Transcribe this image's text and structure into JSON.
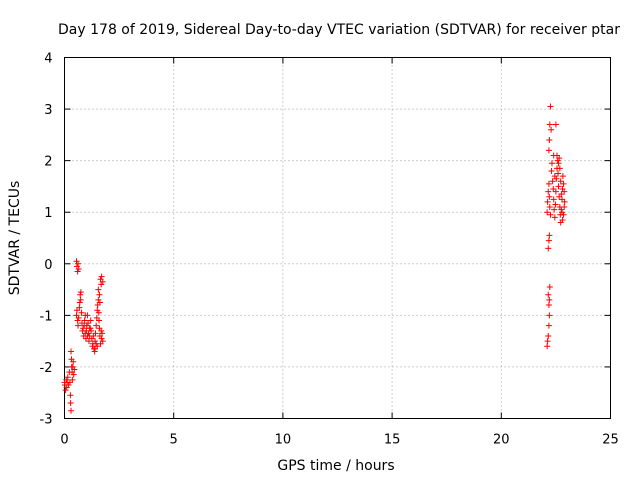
{
  "chart_data": {
    "type": "scatter",
    "title": "Day 178 of 2019, Sidereal Day-to-day VTEC variation (SDTVAR) for receiver ptar",
    "xlabel": "GPS time / hours",
    "ylabel": "SDTVAR / TECUs",
    "xlim": [
      0,
      25
    ],
    "ylim": [
      -3,
      4
    ],
    "xticks": [
      "0",
      "5",
      "10",
      "15",
      "20",
      "25"
    ],
    "xtick_values": [
      0,
      5,
      10,
      15,
      20,
      25
    ],
    "yticks": [
      "-3",
      "-2",
      "-1",
      "0",
      "1",
      "2",
      "3",
      "4"
    ],
    "ytick_values": [
      -3,
      -2,
      -1,
      0,
      1,
      2,
      3,
      4
    ],
    "grid": true,
    "marker": "+",
    "color": "#ff0000",
    "series": [
      {
        "name": "ptar",
        "points": [
          [
            0.0,
            -2.3
          ],
          [
            0.02,
            -2.35
          ],
          [
            0.05,
            -2.45
          ],
          [
            0.08,
            -2.25
          ],
          [
            0.1,
            -2.4
          ],
          [
            0.12,
            -2.3
          ],
          [
            0.15,
            -2.2
          ],
          [
            0.18,
            -2.35
          ],
          [
            0.22,
            -2.1
          ],
          [
            0.25,
            -2.3
          ],
          [
            0.27,
            -2.55
          ],
          [
            0.28,
            -2.7
          ],
          [
            0.3,
            -2.85
          ],
          [
            0.3,
            -1.7
          ],
          [
            0.32,
            -1.85
          ],
          [
            0.33,
            -2.0
          ],
          [
            0.35,
            -2.1
          ],
          [
            0.36,
            -2.25
          ],
          [
            0.38,
            -2.0
          ],
          [
            0.4,
            -1.9
          ],
          [
            0.42,
            -2.15
          ],
          [
            0.45,
            -2.05
          ],
          [
            0.55,
            0.05
          ],
          [
            0.57,
            -0.05
          ],
          [
            0.6,
            -0.15
          ],
          [
            0.62,
            0.0
          ],
          [
            0.65,
            -0.1
          ],
          [
            0.55,
            -1.0
          ],
          [
            0.57,
            -0.9
          ],
          [
            0.6,
            -1.1
          ],
          [
            0.62,
            -1.2
          ],
          [
            0.65,
            -1.05
          ],
          [
            0.68,
            -0.85
          ],
          [
            0.7,
            -0.75
          ],
          [
            0.72,
            -0.6
          ],
          [
            0.74,
            -0.7
          ],
          [
            0.75,
            -0.55
          ],
          [
            0.78,
            -0.95
          ],
          [
            0.8,
            -1.15
          ],
          [
            0.82,
            -1.3
          ],
          [
            0.85,
            -1.25
          ],
          [
            0.88,
            -1.4
          ],
          [
            0.9,
            -1.2
          ],
          [
            0.92,
            -1.1
          ],
          [
            0.95,
            -1.35
          ],
          [
            0.98,
            -1.45
          ],
          [
            1.0,
            -1.3
          ],
          [
            1.02,
            -1.2
          ],
          [
            1.05,
            -1.0
          ],
          [
            1.08,
            -1.15
          ],
          [
            1.1,
            -1.35
          ],
          [
            1.12,
            -1.5
          ],
          [
            1.15,
            -1.4
          ],
          [
            1.18,
            -1.25
          ],
          [
            1.2,
            -1.1
          ],
          [
            1.22,
            -1.3
          ],
          [
            1.25,
            -1.45
          ],
          [
            1.28,
            -1.6
          ],
          [
            1.3,
            -1.55
          ],
          [
            1.32,
            -1.4
          ],
          [
            1.35,
            -1.65
          ],
          [
            1.38,
            -1.7
          ],
          [
            1.4,
            -1.5
          ],
          [
            1.42,
            -1.35
          ],
          [
            1.45,
            -1.2
          ],
          [
            1.48,
            -1.05
          ],
          [
            1.5,
            -0.9
          ],
          [
            1.5,
            -1.6
          ],
          [
            1.52,
            -0.8
          ],
          [
            1.55,
            -0.7
          ],
          [
            1.57,
            -0.95
          ],
          [
            1.58,
            -1.1
          ],
          [
            1.6,
            -1.25
          ],
          [
            1.62,
            -1.4
          ],
          [
            1.65,
            -1.55
          ],
          [
            1.68,
            -1.3
          ],
          [
            1.7,
            -1.45
          ],
          [
            1.72,
            -1.35
          ],
          [
            1.75,
            -1.5
          ],
          [
            1.55,
            -0.5
          ],
          [
            1.6,
            -0.6
          ],
          [
            1.62,
            -0.75
          ],
          [
            1.65,
            -0.3
          ],
          [
            1.68,
            -0.4
          ],
          [
            1.7,
            -0.25
          ],
          [
            1.75,
            -0.35
          ],
          [
            1.45,
            -1.55
          ],
          [
            1.4,
            -1.65
          ],
          [
            1.15,
            -1.25
          ],
          [
            1.05,
            -1.4
          ],
          [
            0.95,
            -1.0
          ],
          [
            22.1,
            -1.6
          ],
          [
            22.12,
            -1.5
          ],
          [
            22.15,
            -1.4
          ],
          [
            22.18,
            -1.2
          ],
          [
            22.2,
            -1.0
          ],
          [
            22.18,
            -0.8
          ],
          [
            22.15,
            -0.6
          ],
          [
            22.2,
            -0.7
          ],
          [
            22.22,
            -0.45
          ],
          [
            22.15,
            0.3
          ],
          [
            22.18,
            0.45
          ],
          [
            22.2,
            0.55
          ],
          [
            22.1,
            1.0
          ],
          [
            22.12,
            1.2
          ],
          [
            22.15,
            1.4
          ],
          [
            22.18,
            1.55
          ],
          [
            22.2,
            1.3
          ],
          [
            22.22,
            1.1
          ],
          [
            22.25,
            0.95
          ],
          [
            22.18,
            2.2
          ],
          [
            22.2,
            2.4
          ],
          [
            22.22,
            2.7
          ],
          [
            22.25,
            3.05
          ],
          [
            22.28,
            2.6
          ],
          [
            22.3,
            1.8
          ],
          [
            22.32,
            1.95
          ],
          [
            22.35,
            1.6
          ],
          [
            22.38,
            1.45
          ],
          [
            22.4,
            1.25
          ],
          [
            22.42,
            1.05
          ],
          [
            22.45,
            0.9
          ],
          [
            22.48,
            1.15
          ],
          [
            22.5,
            1.4
          ],
          [
            22.5,
            2.7
          ],
          [
            22.52,
            1.65
          ],
          [
            22.55,
            1.85
          ],
          [
            22.55,
            2.1
          ],
          [
            22.58,
            2.0
          ],
          [
            22.6,
            1.75
          ],
          [
            22.62,
            1.5
          ],
          [
            22.65,
            1.3
          ],
          [
            22.68,
            1.1
          ],
          [
            22.7,
            0.95
          ],
          [
            22.72,
            0.8
          ],
          [
            22.75,
            1.05
          ],
          [
            22.78,
            1.25
          ],
          [
            22.8,
            1.45
          ],
          [
            22.82,
            1.7
          ],
          [
            22.85,
            1.55
          ],
          [
            22.88,
            1.4
          ],
          [
            22.9,
            1.2
          ],
          [
            22.62,
            1.95
          ],
          [
            22.65,
            2.05
          ],
          [
            22.68,
            1.85
          ],
          [
            22.72,
            1.6
          ],
          [
            22.75,
            1.35
          ],
          [
            22.78,
            1.0
          ],
          [
            22.8,
            0.85
          ],
          [
            22.85,
            0.95
          ],
          [
            22.88,
            1.1
          ],
          [
            22.45,
            1.7
          ],
          [
            22.4,
            2.1
          ]
        ]
      }
    ]
  }
}
